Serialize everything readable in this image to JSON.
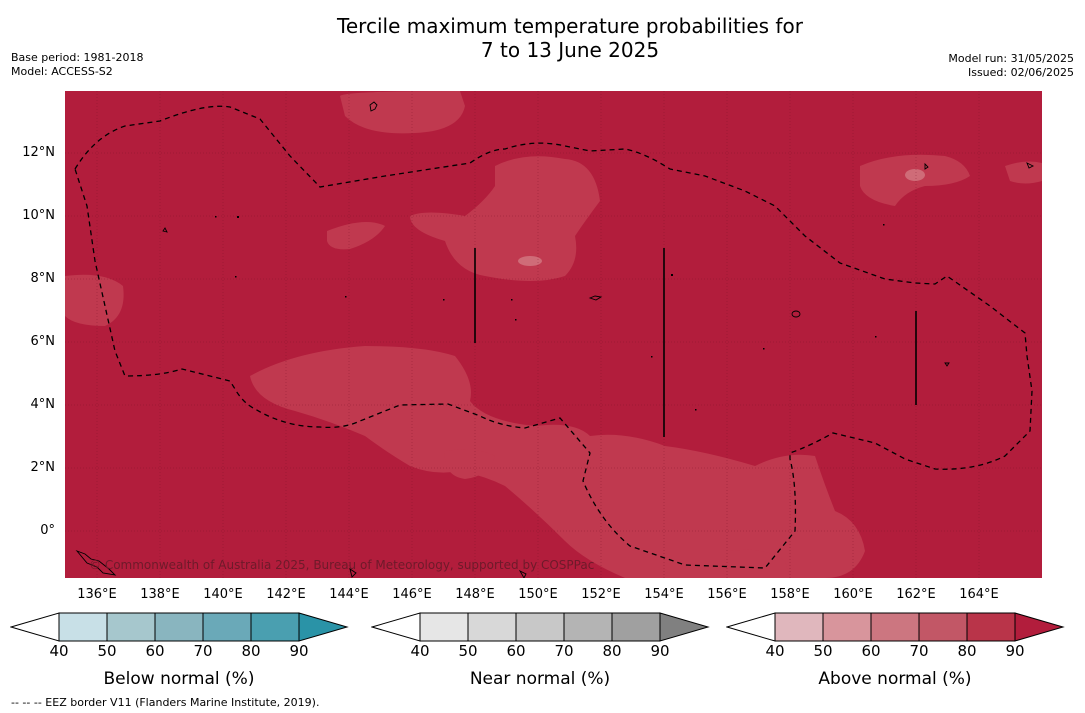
{
  "title_line1": "Tercile maximum temperature probabilities for",
  "title_line2": "7 to 13 June 2025",
  "base_period": "Base period: 1981-2018",
  "model": "Model: ACCESS-S2",
  "model_run": "Model run: 31/05/2025",
  "issued": "Issued: 02/06/2025",
  "copyright": "© Commonwealth of Australia 2025, Bureau of Meteorology, supported by COSPPac",
  "footer": "--  --  -- EEZ border V11 (Flanders Marine Institute, 2019).",
  "latitude_labels": [
    "12°N",
    "10°N",
    "8°N",
    "6°N",
    "4°N",
    "2°N",
    "0°"
  ],
  "longitude_labels": [
    "136°E",
    "138°E",
    "140°E",
    "142°E",
    "144°E",
    "146°E",
    "148°E",
    "150°E",
    "152°E",
    "154°E",
    "156°E",
    "158°E",
    "160°E",
    "162°E",
    "164°E"
  ],
  "map_extent": {
    "lon_min": 135,
    "lon_max": 166,
    "lat_min": -1.5,
    "lat_max": 14
  },
  "dominant_category": "Above normal",
  "dominant_probability_range": "80-90",
  "colorbars": [
    {
      "title": "Below normal (%)",
      "ticks": [
        "40",
        "50",
        "60",
        "70",
        "80",
        "90"
      ],
      "colors": [
        "#ffffff",
        "#c8e0e7",
        "#a6c7cd",
        "#89b5bf",
        "#6aa9b8",
        "#4a9fb0",
        "#2a93a7"
      ]
    },
    {
      "title": "Near normal (%)",
      "ticks": [
        "40",
        "50",
        "60",
        "70",
        "80",
        "90"
      ],
      "colors": [
        "#ffffff",
        "#e6e6e6",
        "#d8d8d8",
        "#c8c8c8",
        "#b4b4b4",
        "#a0a0a0",
        "#808080"
      ]
    },
    {
      "title": "Above normal (%)",
      "ticks": [
        "40",
        "50",
        "60",
        "70",
        "80",
        "90"
      ],
      "colors": [
        "#ffffff",
        "#e0b7bd",
        "#d8959c",
        "#cc7680",
        "#c25766",
        "#b93449",
        "#b21d3c"
      ]
    }
  ]
}
